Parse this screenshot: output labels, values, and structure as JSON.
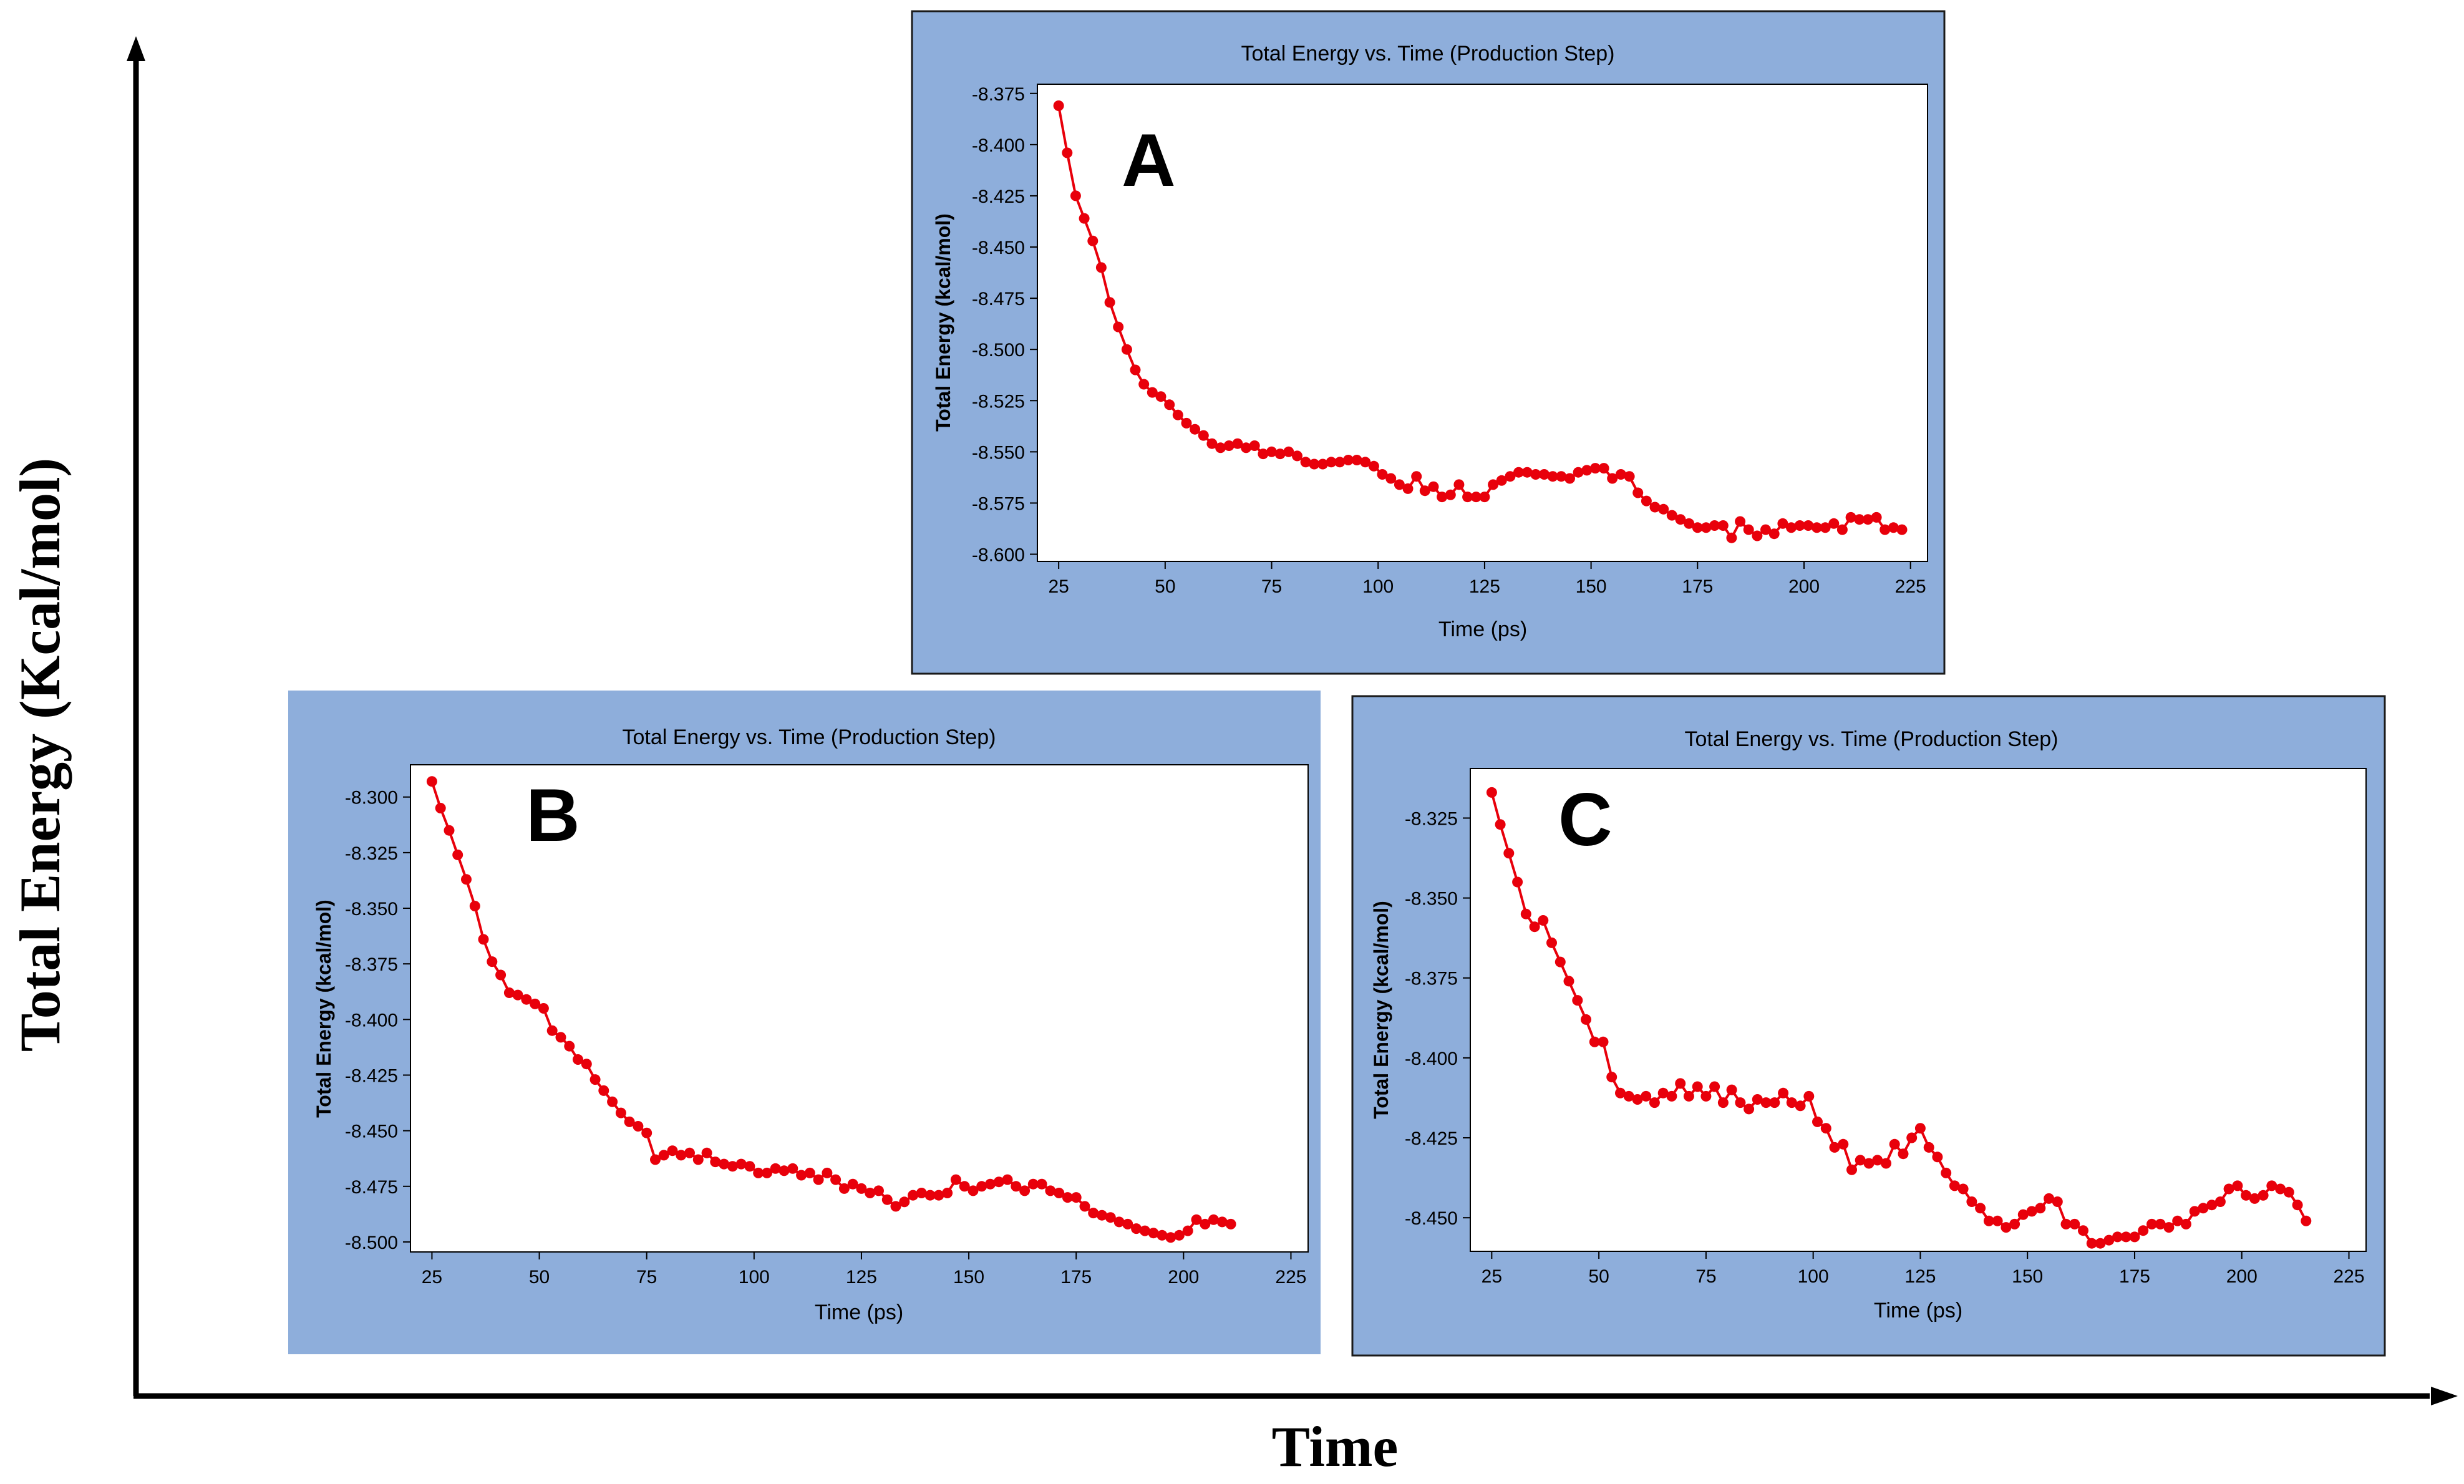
{
  "figure": {
    "outer_ylabel": "Total Energy (Kcal/mol)",
    "outer_xlabel": "Time"
  },
  "colors": {
    "panel_bg": "#8eaedb",
    "plot_bg": "#ffffff",
    "series": "#e8000b",
    "frame": "#000000"
  },
  "chart_data": [
    {
      "id": "A",
      "type": "line",
      "panel_label": "A",
      "title": "Total Energy vs. Time (Production Step)",
      "xlabel": "Time (ps)",
      "ylabel": "Total Energy (kcal/mol)",
      "xlim": [
        20,
        229
      ],
      "ylim": [
        -8.6035,
        -8.3705
      ],
      "xticks": [
        25,
        50,
        75,
        100,
        125,
        150,
        175,
        200,
        225
      ],
      "yticks": [
        -8.375,
        -8.4,
        -8.425,
        -8.45,
        -8.475,
        -8.5,
        -8.525,
        -8.55,
        -8.575,
        -8.6
      ],
      "ytick_labels": [
        "-8.375",
        "-8.400",
        "-8.425",
        "-8.450",
        "-8.475",
        "-8.500",
        "-8.525",
        "-8.550",
        "-8.575",
        "-8.600"
      ],
      "x_start": 25,
      "x_step": 2,
      "y": [
        -8.381,
        -8.404,
        -8.425,
        -8.436,
        -8.447,
        -8.46,
        -8.477,
        -8.489,
        -8.5,
        -8.51,
        -8.517,
        -8.521,
        -8.523,
        -8.527,
        -8.532,
        -8.536,
        -8.539,
        -8.542,
        -8.546,
        -8.548,
        -8.547,
        -8.546,
        -8.548,
        -8.547,
        -8.551,
        -8.55,
        -8.551,
        -8.55,
        -8.552,
        -8.555,
        -8.556,
        -8.556,
        -8.555,
        -8.555,
        -8.554,
        -8.554,
        -8.555,
        -8.557,
        -8.561,
        -8.563,
        -8.566,
        -8.568,
        -8.562,
        -8.569,
        -8.567,
        -8.572,
        -8.571,
        -8.566,
        -8.572,
        -8.572,
        -8.572,
        -8.566,
        -8.564,
        -8.562,
        -8.56,
        -8.56,
        -8.561,
        -8.561,
        -8.562,
        -8.562,
        -8.563,
        -8.56,
        -8.559,
        -8.558,
        -8.558,
        -8.563,
        -8.561,
        -8.562,
        -8.57,
        -8.574,
        -8.577,
        -8.578,
        -8.581,
        -8.583,
        -8.585,
        -8.587,
        -8.587,
        -8.586,
        -8.586,
        -8.592,
        -8.584,
        -8.588,
        -8.591,
        -8.588,
        -8.59,
        -8.585,
        -8.587,
        -8.586,
        -8.586,
        -8.587,
        -8.587,
        -8.585,
        -8.588,
        -8.582,
        -8.583,
        -8.583,
        -8.582,
        -8.588,
        -8.587,
        -8.588
      ]
    },
    {
      "id": "B",
      "type": "line",
      "panel_label": "B",
      "title": "Total Energy vs. Time (Production Step)",
      "xlabel": "Time (ps)",
      "ylabel": "Total Energy (kcal/mol)",
      "xlim": [
        20,
        229
      ],
      "ylim": [
        -8.5045,
        -8.2855
      ],
      "xticks": [
        25,
        50,
        75,
        100,
        125,
        150,
        175,
        200,
        225
      ],
      "yticks": [
        -8.3,
        -8.325,
        -8.35,
        -8.375,
        -8.4,
        -8.425,
        -8.45,
        -8.475,
        -8.5
      ],
      "ytick_labels": [
        "-8.300",
        "-8.325",
        "-8.350",
        "-8.375",
        "-8.400",
        "-8.425",
        "-8.450",
        "-8.475",
        "-8.500"
      ],
      "x_start": 25,
      "x_step": 2,
      "y": [
        -8.293,
        -8.305,
        -8.315,
        -8.326,
        -8.337,
        -8.349,
        -8.364,
        -8.374,
        -8.38,
        -8.388,
        -8.389,
        -8.391,
        -8.393,
        -8.395,
        -8.405,
        -8.408,
        -8.412,
        -8.418,
        -8.42,
        -8.427,
        -8.432,
        -8.437,
        -8.442,
        -8.446,
        -8.448,
        -8.451,
        -8.463,
        -8.461,
        -8.459,
        -8.461,
        -8.46,
        -8.463,
        -8.46,
        -8.464,
        -8.465,
        -8.466,
        -8.465,
        -8.466,
        -8.469,
        -8.469,
        -8.467,
        -8.468,
        -8.467,
        -8.47,
        -8.469,
        -8.472,
        -8.469,
        -8.472,
        -8.476,
        -8.474,
        -8.476,
        -8.478,
        -8.477,
        -8.481,
        -8.484,
        -8.482,
        -8.479,
        -8.478,
        -8.479,
        -8.479,
        -8.478,
        -8.472,
        -8.475,
        -8.477,
        -8.475,
        -8.474,
        -8.473,
        -8.472,
        -8.475,
        -8.477,
        -8.474,
        -8.474,
        -8.477,
        -8.478,
        -8.48,
        -8.48,
        -8.484,
        -8.487,
        -8.488,
        -8.489,
        -8.491,
        -8.492,
        -8.494,
        -8.495,
        -8.496,
        -8.497,
        -8.498,
        -8.497,
        -8.495,
        -8.49,
        -8.492,
        -8.49,
        -8.491,
        -8.492
      ]
    },
    {
      "id": "C",
      "type": "line",
      "panel_label": "C",
      "title": "Total Energy vs. Time (Production Step)",
      "xlabel": "Time (ps)",
      "ylabel": "Total Energy (kcal/mol)",
      "xlim": [
        20,
        229
      ],
      "ylim": [
        -8.4605,
        -8.3095
      ],
      "xticks": [
        25,
        50,
        75,
        100,
        125,
        150,
        175,
        200,
        225
      ],
      "yticks": [
        -8.325,
        -8.35,
        -8.375,
        -8.4,
        -8.425,
        -8.45
      ],
      "ytick_labels": [
        "-8.325",
        "-8.350",
        "-8.375",
        "-8.400",
        "-8.425",
        "-8.450"
      ],
      "x_start": 25,
      "x_step": 2,
      "y": [
        -8.317,
        -8.327,
        -8.336,
        -8.345,
        -8.355,
        -8.359,
        -8.357,
        -8.364,
        -8.37,
        -8.376,
        -8.382,
        -8.388,
        -8.395,
        -8.395,
        -8.406,
        -8.411,
        -8.412,
        -8.413,
        -8.412,
        -8.414,
        -8.411,
        -8.412,
        -8.408,
        -8.412,
        -8.409,
        -8.412,
        -8.409,
        -8.414,
        -8.41,
        -8.414,
        -8.416,
        -8.413,
        -8.414,
        -8.414,
        -8.411,
        -8.414,
        -8.415,
        -8.412,
        -8.42,
        -8.422,
        -8.428,
        -8.427,
        -8.435,
        -8.432,
        -8.433,
        -8.432,
        -8.433,
        -8.427,
        -8.43,
        -8.425,
        -8.422,
        -8.428,
        -8.431,
        -8.436,
        -8.44,
        -8.441,
        -8.445,
        -8.447,
        -8.451,
        -8.451,
        -8.453,
        -8.452,
        -8.449,
        -8.448,
        -8.447,
        -8.444,
        -8.445,
        -8.452,
        -8.452,
        -8.454,
        -8.458,
        -8.458,
        -8.457,
        -8.456,
        -8.456,
        -8.456,
        -8.454,
        -8.452,
        -8.452,
        -8.453,
        -8.451,
        -8.452,
        -8.448,
        -8.447,
        -8.446,
        -8.445,
        -8.441,
        -8.44,
        -8.443,
        -8.444,
        -8.443,
        -8.44,
        -8.441,
        -8.442,
        -8.446,
        -8.451
      ]
    }
  ]
}
